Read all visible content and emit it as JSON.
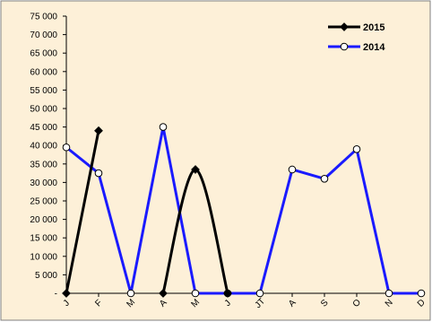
{
  "chart_data": {
    "type": "line",
    "categories": [
      "J",
      "F",
      "M",
      "A",
      "M",
      "J",
      "JT",
      "A",
      "S",
      "O",
      "N",
      "D"
    ],
    "series": [
      {
        "name": "2015",
        "values": [
          0,
          44000,
          null,
          0,
          33500,
          0,
          null,
          null,
          null,
          null,
          null,
          null
        ],
        "color": "#000000",
        "marker": "diamond",
        "smooth": true
      },
      {
        "name": "2014",
        "values": [
          39500,
          32500,
          0,
          45000,
          0,
          0,
          0,
          33500,
          31000,
          39000,
          0,
          0
        ],
        "color": "#1a1aff",
        "marker": "circle",
        "smooth": false
      }
    ],
    "y_tick_labels": [
      "-",
      "5 000",
      "10 000",
      "15 000",
      "20 000",
      "25 000",
      "30 000",
      "35 000",
      "40 000",
      "45 000",
      "50 000",
      "55 000",
      "60 000",
      "65 000",
      "70 000",
      "75 000"
    ],
    "ylim": [
      0,
      75000
    ],
    "ystep": 5000,
    "grid": false,
    "legend_position": "top-right",
    "plot_background": "#fdf0d8"
  }
}
